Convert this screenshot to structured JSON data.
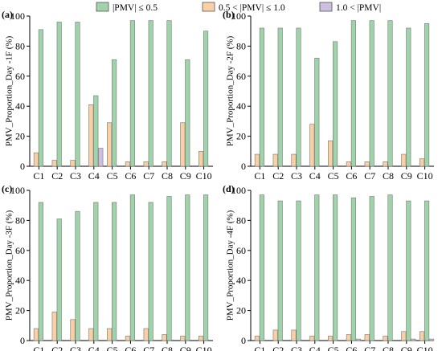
{
  "legend": {
    "items": [
      {
        "label": "|PMV| ≤ 0.5",
        "color": "#9fd3aa"
      },
      {
        "label": "0.5 < |PMV| ≤ 1.0",
        "color": "#f9cfa4"
      },
      {
        "label": "1.0 < |PMV|",
        "color": "#cdbfe0"
      }
    ]
  },
  "colors": {
    "series1": "#9fd3aa",
    "series2": "#f9cfa4",
    "series3": "#cdbfe0",
    "axis": "#000000"
  },
  "chart_data": [
    {
      "type": "bar",
      "panel_label": "(a)",
      "ylabel": "PMV_Proportion_Day -1F (%)",
      "ylim": [
        0,
        100
      ],
      "yticks": [
        "0",
        "20",
        "40",
        "60",
        "80",
        "100"
      ],
      "categories": [
        "C1",
        "C2",
        "C3",
        "C4",
        "C5",
        "C6",
        "C7",
        "C8",
        "C9",
        "C10"
      ],
      "series": [
        {
          "name": "|PMV| ≤ 0.5",
          "values": [
            91,
            96,
            96,
            47,
            71,
            97,
            97,
            97,
            71,
            90
          ]
        },
        {
          "name": "0.5 < |PMV| ≤ 1.0",
          "values": [
            9,
            4,
            4,
            41,
            29,
            3,
            3,
            3,
            29,
            10
          ]
        },
        {
          "name": "1.0 < |PMV|",
          "values": [
            0,
            0,
            0,
            12,
            0,
            0,
            0,
            0,
            0,
            0
          ]
        }
      ]
    },
    {
      "type": "bar",
      "panel_label": "(b)",
      "ylabel": "PMV_Proportion_Day -2F (%)",
      "ylim": [
        0,
        100
      ],
      "yticks": [
        "0",
        "20",
        "40",
        "60",
        "80",
        "100"
      ],
      "categories": [
        "C1",
        "C2",
        "C3",
        "C4",
        "C5",
        "C6",
        "C7",
        "C8",
        "C9",
        "C10"
      ],
      "series": [
        {
          "name": "|PMV| ≤ 0.5",
          "values": [
            92,
            92,
            92,
            72,
            83,
            97,
            97,
            97,
            92,
            95
          ]
        },
        {
          "name": "0.5 < |PMV| ≤ 1.0",
          "values": [
            8,
            8,
            8,
            28,
            17,
            3,
            3,
            3,
            8,
            5
          ]
        },
        {
          "name": "1.0 < |PMV|",
          "values": [
            0,
            0,
            0,
            0,
            0,
            0,
            0,
            0,
            0,
            0
          ]
        }
      ]
    },
    {
      "type": "bar",
      "panel_label": "(c)",
      "ylabel": "PMV_Proportion_Day -3F (%)",
      "ylim": [
        0,
        100
      ],
      "yticks": [
        "0",
        "20",
        "40",
        "60",
        "80",
        "100"
      ],
      "categories": [
        "C1",
        "C2",
        "C3",
        "C4",
        "C5",
        "C6",
        "C7",
        "C8",
        "C9",
        "C10"
      ],
      "series": [
        {
          "name": "|PMV| ≤ 0.5",
          "values": [
            92,
            81,
            86,
            92,
            92,
            97,
            92,
            96,
            97,
            97
          ]
        },
        {
          "name": "0.5 < |PMV| ≤ 1.0",
          "values": [
            8,
            19,
            14,
            8,
            8,
            3,
            8,
            4,
            3,
            3
          ]
        },
        {
          "name": "1.0 < |PMV|",
          "values": [
            0,
            0,
            0,
            0,
            0,
            0,
            0,
            0,
            0,
            0
          ]
        }
      ]
    },
    {
      "type": "bar",
      "panel_label": "(d)",
      "ylabel": "PMV_Proportion_Day -4F (%)",
      "ylim": [
        0,
        100
      ],
      "yticks": [
        "0",
        "20",
        "40",
        "60",
        "80",
        "100"
      ],
      "categories": [
        "C1",
        "C2",
        "C3",
        "C4",
        "C5",
        "C6",
        "C7",
        "C8",
        "C9",
        "C10"
      ],
      "series": [
        {
          "name": "|PMV| ≤ 0.5",
          "values": [
            97,
            93,
            93,
            97,
            97,
            95,
            96,
            97,
            93,
            93
          ]
        },
        {
          "name": "0.5 < |PMV| ≤ 1.0",
          "values": [
            3,
            7,
            7,
            3,
            3,
            4,
            4,
            3,
            6,
            6
          ]
        },
        {
          "name": "1.0 < |PMV|",
          "values": [
            0,
            0,
            0,
            0,
            0,
            1,
            0,
            0,
            1,
            1
          ]
        }
      ]
    }
  ]
}
